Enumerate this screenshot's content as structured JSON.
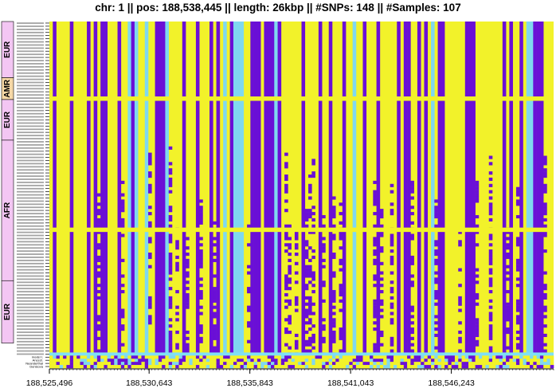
{
  "title": "chr: 1  ||  pos: 188,538,445  ||  length: 26kbp  ||  #SNPs: 148  ||  #Samples: 107",
  "colors": {
    "homozygous_ref": "#f2f22a",
    "heterozygous": "#6a0fd6",
    "homozygous_alt": "#6a0fd6",
    "missing": "#7fd8f0",
    "grid_highlight": "#7fe0f5",
    "group_label_bg": "#f3c6f3",
    "amr_label_bg": "#f6d8a6"
  },
  "chart_data": {
    "type": "heatmap",
    "title": "chr: 1  ||  pos: 188,538,445  ||  length: 26kbp  ||  #SNPs: 148  ||  #Samples: 107",
    "x_ticks": [
      "188,525,496",
      "188,530,643",
      "188,535,843",
      "188,541,043",
      "188,546,243"
    ],
    "x_tick_values": [
      188525496,
      188530643,
      188535843,
      188541043,
      188546243
    ],
    "xlim": [
      188525496,
      188551521
    ],
    "n_snps": 148,
    "n_samples": 107,
    "groups": [
      {
        "name": "EUR",
        "rows": 18
      },
      {
        "name": "AMR",
        "rows": 7
      },
      {
        "name": "EUR",
        "rows": 13
      },
      {
        "name": "AFR",
        "rows": 45
      },
      {
        "name": "EUR",
        "rows": 20
      }
    ],
    "reference_rows": [
      "model I.",
      "Ancest.",
      "Neanderthal",
      "Denisova"
    ],
    "highlight_rows": [
      24,
      66,
      106
    ],
    "grid": false
  }
}
